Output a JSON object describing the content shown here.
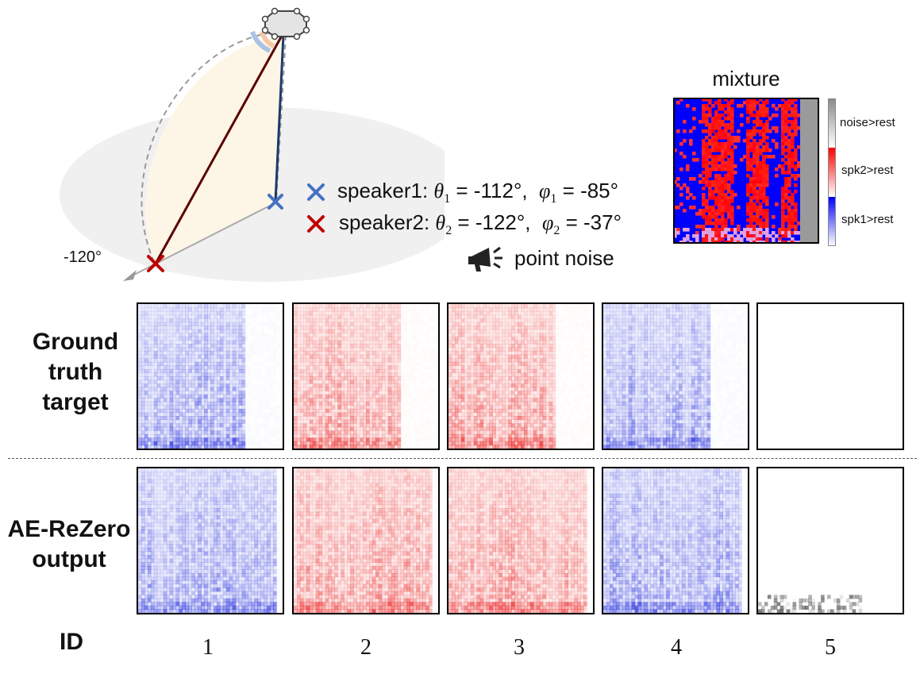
{
  "geometry_legend": {
    "speaker1": {
      "name": "speaker1",
      "theta_sym": "θ",
      "theta_sub": "1",
      "theta_val": "-112°",
      "phi_sym": "φ",
      "phi_sub": "1",
      "phi_val": "-85°",
      "color": "#4472c4"
    },
    "speaker2": {
      "name": "speaker2",
      "theta_sym": "θ",
      "theta_sub": "2",
      "theta_val": "-122°",
      "phi_sym": "φ",
      "phi_sub": "2",
      "phi_val": "-37°",
      "color": "#c00000"
    },
    "noise_label": "point noise",
    "azimuth_label": "-120°"
  },
  "mixture": {
    "title": "mixture",
    "colorbar_labels": [
      "noise>rest",
      "spk2>rest",
      "spk1>rest"
    ],
    "colors": {
      "noise": "#9a9a9a",
      "spk2": "#ff0000",
      "spk1": "#0000ff"
    }
  },
  "rows": [
    {
      "label_lines": [
        "Ground",
        "truth",
        "target"
      ]
    },
    {
      "label_lines": [
        "AE-ReZero",
        "output"
      ]
    }
  ],
  "id_label": "ID",
  "ids": [
    "1",
    "2",
    "3",
    "4",
    "5"
  ],
  "panels": {
    "colors": [
      "blue",
      "red",
      "red",
      "blue",
      "none"
    ],
    "gt_fill_fraction": [
      0.73,
      0.73,
      0.73,
      0.73,
      0.0
    ]
  }
}
